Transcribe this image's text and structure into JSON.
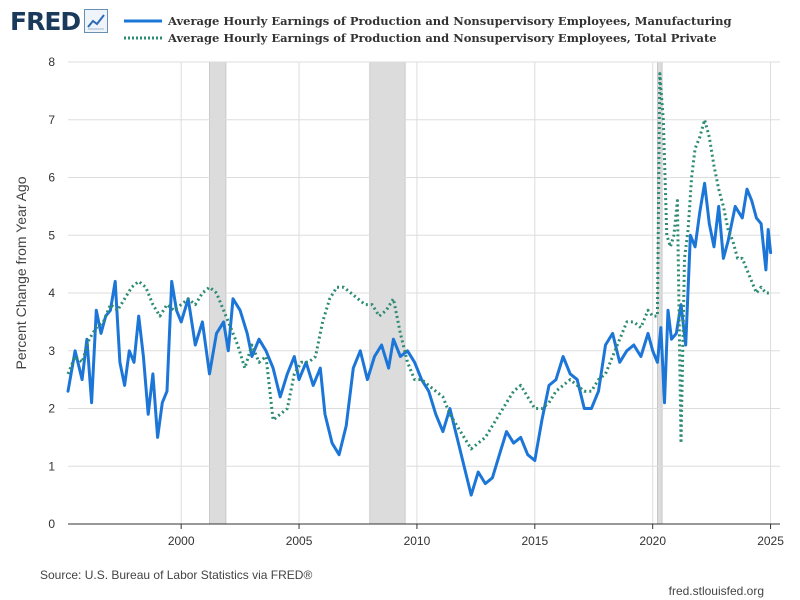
{
  "header": {
    "logo_text": "FRED"
  },
  "footer": {
    "source": "Source: U.S. Bureau of Labor Statistics via FRED®",
    "url": "fred.stlouisfed.org"
  },
  "colors": {
    "manufacturing": "#1c76d8",
    "private": "#2e8b73",
    "recession": "#dcdcdc",
    "grid": "#dddddd",
    "axis_text": "#333333"
  },
  "chart_data": {
    "type": "line",
    "title": "",
    "xlabel": "",
    "ylabel": "Percent Change from Year Ago",
    "xlim": [
      1995.2,
      2025.4
    ],
    "ylim": [
      0,
      8
    ],
    "x_ticks": [
      2000,
      2005,
      2010,
      2015,
      2020,
      2025
    ],
    "x_tick_labels": [
      "2000",
      "2005",
      "2010",
      "2015",
      "2020",
      "2025"
    ],
    "y_ticks": [
      0,
      1,
      2,
      3,
      4,
      5,
      6,
      7,
      8
    ],
    "y_tick_labels": [
      "0",
      "1",
      "2",
      "3",
      "4",
      "5",
      "6",
      "7",
      "8"
    ],
    "grid": true,
    "legend_position": "top",
    "recessions": [
      [
        2001.2,
        2001.9
      ],
      [
        2008.0,
        2009.5
      ],
      [
        2020.2,
        2020.4
      ]
    ],
    "series": [
      {
        "name": "Average Hourly Earnings of Production and Nonsupervisory Employees, Manufacturing",
        "style": "solid",
        "points": [
          [
            1995.2,
            2.3
          ],
          [
            1995.5,
            3.0
          ],
          [
            1995.8,
            2.5
          ],
          [
            1996.0,
            3.2
          ],
          [
            1996.2,
            2.1
          ],
          [
            1996.4,
            3.7
          ],
          [
            1996.6,
            3.3
          ],
          [
            1996.8,
            3.6
          ],
          [
            1997.0,
            3.7
          ],
          [
            1997.2,
            4.2
          ],
          [
            1997.4,
            2.8
          ],
          [
            1997.6,
            2.4
          ],
          [
            1997.8,
            3.0
          ],
          [
            1998.0,
            2.8
          ],
          [
            1998.2,
            3.6
          ],
          [
            1998.4,
            2.9
          ],
          [
            1998.6,
            1.9
          ],
          [
            1998.8,
            2.6
          ],
          [
            1999.0,
            1.5
          ],
          [
            1999.2,
            2.1
          ],
          [
            1999.4,
            2.3
          ],
          [
            1999.6,
            4.2
          ],
          [
            1999.8,
            3.7
          ],
          [
            2000.0,
            3.5
          ],
          [
            2000.3,
            3.9
          ],
          [
            2000.6,
            3.1
          ],
          [
            2000.9,
            3.5
          ],
          [
            2001.2,
            2.6
          ],
          [
            2001.5,
            3.3
          ],
          [
            2001.8,
            3.5
          ],
          [
            2002.0,
            3.0
          ],
          [
            2002.2,
            3.9
          ],
          [
            2002.5,
            3.7
          ],
          [
            2002.8,
            3.3
          ],
          [
            2003.0,
            2.9
          ],
          [
            2003.3,
            3.2
          ],
          [
            2003.6,
            3.0
          ],
          [
            2003.9,
            2.7
          ],
          [
            2004.2,
            2.2
          ],
          [
            2004.5,
            2.6
          ],
          [
            2004.8,
            2.9
          ],
          [
            2005.0,
            2.5
          ],
          [
            2005.3,
            2.8
          ],
          [
            2005.6,
            2.4
          ],
          [
            2005.9,
            2.7
          ],
          [
            2006.1,
            1.9
          ],
          [
            2006.4,
            1.4
          ],
          [
            2006.7,
            1.2
          ],
          [
            2007.0,
            1.7
          ],
          [
            2007.3,
            2.7
          ],
          [
            2007.6,
            3.0
          ],
          [
            2007.9,
            2.5
          ],
          [
            2008.2,
            2.9
          ],
          [
            2008.5,
            3.1
          ],
          [
            2008.8,
            2.7
          ],
          [
            2009.0,
            3.2
          ],
          [
            2009.3,
            2.9
          ],
          [
            2009.6,
            3.0
          ],
          [
            2009.9,
            2.8
          ],
          [
            2010.2,
            2.5
          ],
          [
            2010.5,
            2.3
          ],
          [
            2010.8,
            1.9
          ],
          [
            2011.1,
            1.6
          ],
          [
            2011.4,
            2.0
          ],
          [
            2011.7,
            1.5
          ],
          [
            2012.0,
            1.0
          ],
          [
            2012.3,
            0.5
          ],
          [
            2012.6,
            0.9
          ],
          [
            2012.9,
            0.7
          ],
          [
            2013.2,
            0.8
          ],
          [
            2013.5,
            1.2
          ],
          [
            2013.8,
            1.6
          ],
          [
            2014.1,
            1.4
          ],
          [
            2014.4,
            1.5
          ],
          [
            2014.7,
            1.2
          ],
          [
            2015.0,
            1.1
          ],
          [
            2015.3,
            1.8
          ],
          [
            2015.6,
            2.4
          ],
          [
            2015.9,
            2.5
          ],
          [
            2016.2,
            2.9
          ],
          [
            2016.5,
            2.6
          ],
          [
            2016.8,
            2.5
          ],
          [
            2017.1,
            2.0
          ],
          [
            2017.4,
            2.0
          ],
          [
            2017.7,
            2.3
          ],
          [
            2018.0,
            3.1
          ],
          [
            2018.3,
            3.3
          ],
          [
            2018.6,
            2.8
          ],
          [
            2018.9,
            3.0
          ],
          [
            2019.2,
            3.1
          ],
          [
            2019.5,
            2.9
          ],
          [
            2019.8,
            3.3
          ],
          [
            2020.0,
            3.0
          ],
          [
            2020.2,
            2.8
          ],
          [
            2020.35,
            3.4
          ],
          [
            2020.5,
            2.1
          ],
          [
            2020.65,
            3.7
          ],
          [
            2020.8,
            3.2
          ],
          [
            2021.0,
            3.3
          ],
          [
            2021.2,
            3.8
          ],
          [
            2021.4,
            3.1
          ],
          [
            2021.6,
            5.0
          ],
          [
            2021.8,
            4.8
          ],
          [
            2022.0,
            5.4
          ],
          [
            2022.2,
            5.9
          ],
          [
            2022.4,
            5.2
          ],
          [
            2022.6,
            4.8
          ],
          [
            2022.8,
            5.5
          ],
          [
            2023.0,
            4.6
          ],
          [
            2023.2,
            4.9
          ],
          [
            2023.5,
            5.5
          ],
          [
            2023.8,
            5.3
          ],
          [
            2024.0,
            5.8
          ],
          [
            2024.2,
            5.6
          ],
          [
            2024.4,
            5.3
          ],
          [
            2024.6,
            5.2
          ],
          [
            2024.8,
            4.4
          ],
          [
            2024.9,
            5.1
          ],
          [
            2025.0,
            4.7
          ]
        ]
      },
      {
        "name": "Average Hourly Earnings of Production and Nonsupervisory Employees, Total Private",
        "style": "dotted",
        "points": [
          [
            1995.2,
            2.6
          ],
          [
            1995.5,
            2.9
          ],
          [
            1995.8,
            2.8
          ],
          [
            1996.1,
            3.2
          ],
          [
            1996.4,
            3.4
          ],
          [
            1996.7,
            3.5
          ],
          [
            1997.0,
            3.8
          ],
          [
            1997.3,
            3.7
          ],
          [
            1997.6,
            3.9
          ],
          [
            1997.9,
            4.1
          ],
          [
            1998.2,
            4.2
          ],
          [
            1998.5,
            4.1
          ],
          [
            1998.8,
            3.8
          ],
          [
            1999.1,
            3.6
          ],
          [
            1999.4,
            3.8
          ],
          [
            1999.7,
            3.7
          ],
          [
            2000.0,
            3.8
          ],
          [
            2000.3,
            3.9
          ],
          [
            2000.6,
            3.8
          ],
          [
            2000.9,
            4.0
          ],
          [
            2001.2,
            4.1
          ],
          [
            2001.5,
            4.0
          ],
          [
            2001.8,
            3.7
          ],
          [
            2002.1,
            3.4
          ],
          [
            2002.4,
            3.1
          ],
          [
            2002.7,
            2.7
          ],
          [
            2003.0,
            3.1
          ],
          [
            2003.3,
            2.8
          ],
          [
            2003.6,
            2.9
          ],
          [
            2003.9,
            1.8
          ],
          [
            2004.2,
            1.9
          ],
          [
            2004.5,
            2.0
          ],
          [
            2004.8,
            2.6
          ],
          [
            2005.1,
            2.8
          ],
          [
            2005.4,
            2.8
          ],
          [
            2005.7,
            2.9
          ],
          [
            2006.0,
            3.5
          ],
          [
            2006.3,
            3.9
          ],
          [
            2006.6,
            4.1
          ],
          [
            2006.9,
            4.1
          ],
          [
            2007.2,
            4.0
          ],
          [
            2007.5,
            3.9
          ],
          [
            2007.8,
            3.8
          ],
          [
            2008.1,
            3.8
          ],
          [
            2008.4,
            3.6
          ],
          [
            2008.7,
            3.7
          ],
          [
            2009.0,
            3.9
          ],
          [
            2009.3,
            3.3
          ],
          [
            2009.6,
            2.8
          ],
          [
            2009.9,
            2.5
          ],
          [
            2010.2,
            2.5
          ],
          [
            2010.5,
            2.4
          ],
          [
            2010.8,
            2.3
          ],
          [
            2011.1,
            2.2
          ],
          [
            2011.4,
            1.9
          ],
          [
            2011.7,
            1.7
          ],
          [
            2012.0,
            1.5
          ],
          [
            2012.3,
            1.3
          ],
          [
            2012.6,
            1.4
          ],
          [
            2012.9,
            1.5
          ],
          [
            2013.2,
            1.7
          ],
          [
            2013.5,
            1.9
          ],
          [
            2013.8,
            2.1
          ],
          [
            2014.1,
            2.3
          ],
          [
            2014.4,
            2.4
          ],
          [
            2014.7,
            2.2
          ],
          [
            2015.0,
            2.0
          ],
          [
            2015.3,
            2.0
          ],
          [
            2015.6,
            2.1
          ],
          [
            2015.9,
            2.3
          ],
          [
            2016.2,
            2.4
          ],
          [
            2016.5,
            2.5
          ],
          [
            2016.8,
            2.4
          ],
          [
            2017.1,
            2.3
          ],
          [
            2017.4,
            2.3
          ],
          [
            2017.7,
            2.5
          ],
          [
            2018.0,
            2.6
          ],
          [
            2018.3,
            2.9
          ],
          [
            2018.6,
            3.2
          ],
          [
            2018.9,
            3.5
          ],
          [
            2019.2,
            3.5
          ],
          [
            2019.5,
            3.4
          ],
          [
            2019.8,
            3.7
          ],
          [
            2020.0,
            3.6
          ],
          [
            2020.2,
            3.6
          ],
          [
            2020.3,
            7.8
          ],
          [
            2020.45,
            7.0
          ],
          [
            2020.6,
            5.0
          ],
          [
            2020.75,
            4.8
          ],
          [
            2020.9,
            5.0
          ],
          [
            2021.05,
            5.6
          ],
          [
            2021.2,
            1.4
          ],
          [
            2021.35,
            4.6
          ],
          [
            2021.5,
            5.1
          ],
          [
            2021.65,
            6.0
          ],
          [
            2021.8,
            6.5
          ],
          [
            2022.0,
            6.7
          ],
          [
            2022.2,
            7.0
          ],
          [
            2022.4,
            6.7
          ],
          [
            2022.6,
            6.2
          ],
          [
            2022.8,
            5.8
          ],
          [
            2023.0,
            5.5
          ],
          [
            2023.2,
            5.1
          ],
          [
            2023.4,
            4.9
          ],
          [
            2023.6,
            4.6
          ],
          [
            2023.8,
            4.6
          ],
          [
            2024.0,
            4.4
          ],
          [
            2024.2,
            4.2
          ],
          [
            2024.4,
            4.0
          ],
          [
            2024.6,
            4.1
          ],
          [
            2024.8,
            4.0
          ],
          [
            2025.0,
            4.0
          ]
        ]
      }
    ]
  }
}
